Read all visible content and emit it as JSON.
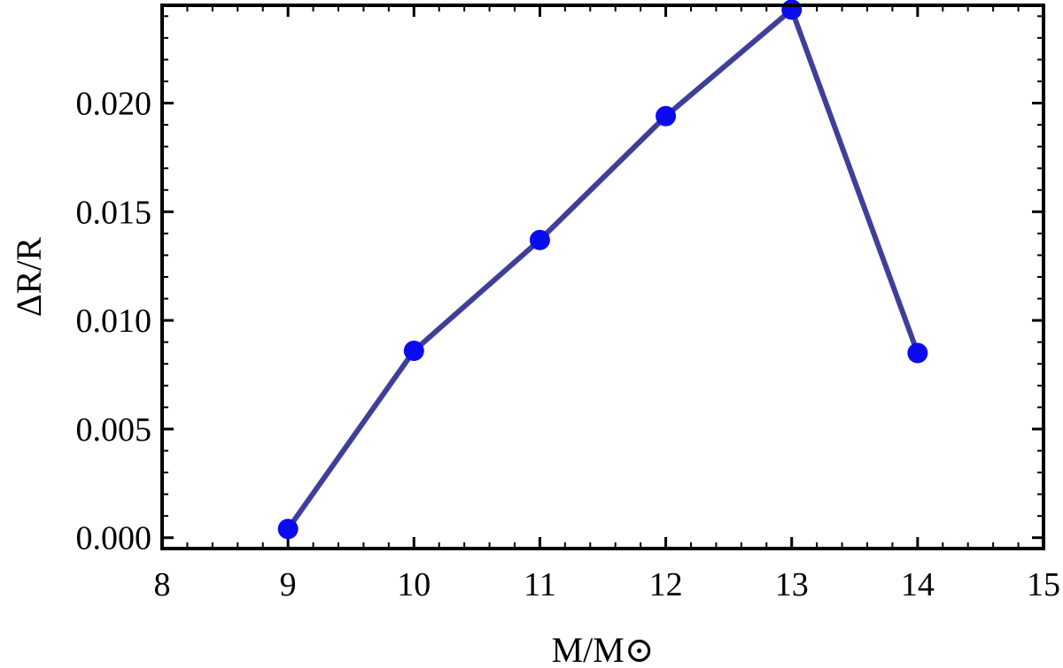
{
  "chart_data": {
    "type": "line",
    "xlabel": "M/M⊙",
    "ylabel": "ΔR/R",
    "xlim": [
      8,
      15
    ],
    "ylim": [
      -0.0005,
      0.0245
    ],
    "x_ticks": [
      8,
      9,
      10,
      11,
      12,
      13,
      14,
      15
    ],
    "x_tick_labels": [
      "8",
      "9",
      "10",
      "11",
      "12",
      "13",
      "14",
      "15"
    ],
    "y_ticks": [
      0.0,
      0.005,
      0.01,
      0.015,
      0.02
    ],
    "y_tick_labels": [
      "0.000",
      "0.005",
      "0.010",
      "0.015",
      "0.020"
    ],
    "grid": false,
    "series": [
      {
        "x": [
          9,
          10,
          11,
          12,
          13,
          14
        ],
        "y": [
          0.0004,
          0.0086,
          0.0137,
          0.0194,
          0.0243,
          0.0085
        ],
        "line_color": "#3f3f9a",
        "marker_color": "#0b0bf0"
      }
    ]
  }
}
